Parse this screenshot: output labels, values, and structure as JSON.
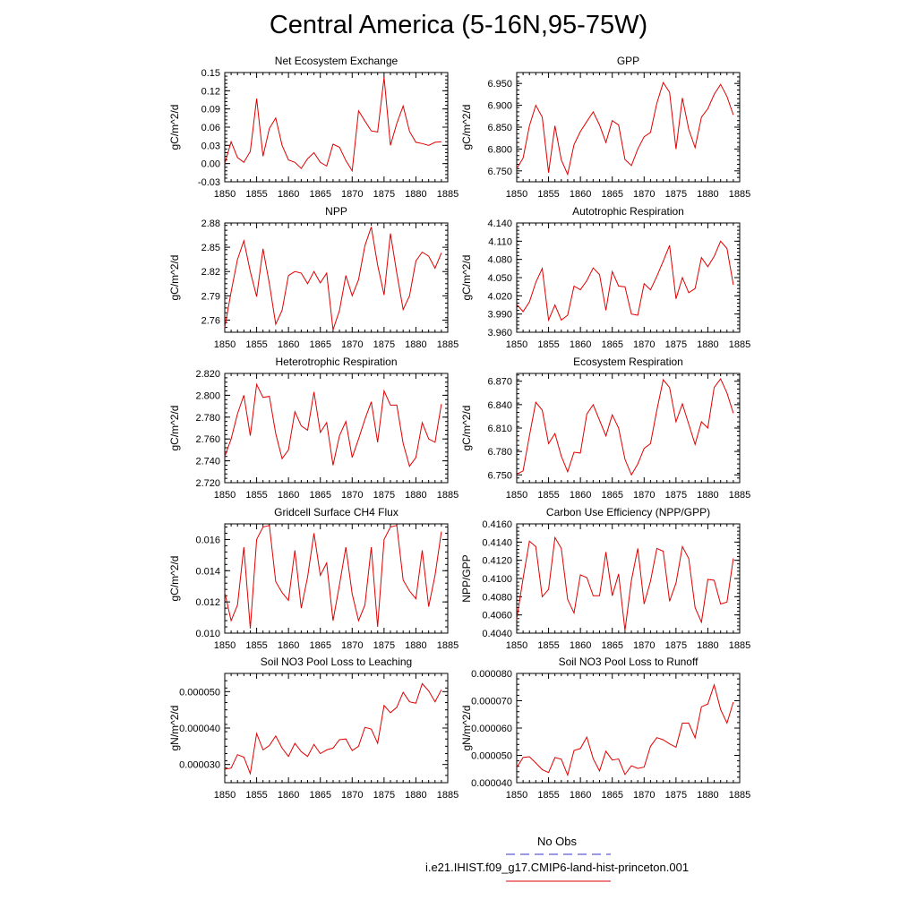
{
  "page": {
    "title": "Central America (5-16N,95-75W)"
  },
  "legend": {
    "obs_label": "No Obs",
    "model_label": "i.e21.IHIST.f09_g17.CMIP6-land-hist-princeton.001",
    "obs_color": "#3333cc",
    "model_color": "#e00000"
  },
  "chart_data": [
    {
      "type": "line",
      "title": "Net Ecosystem Exchange",
      "ylabel": "gC/m^2/d",
      "xlim": [
        1850,
        1885
      ],
      "ylim": [
        -0.03,
        0.15
      ],
      "xticks": [
        1850,
        1855,
        1860,
        1865,
        1870,
        1875,
        1880,
        1885
      ],
      "yticks": [
        "-0.03",
        "0.00",
        "0.03",
        "0.06",
        "0.09",
        "0.12",
        "0.15"
      ],
      "series": [
        {
          "color": "#e00000",
          "x_start": 1850,
          "values": [
            0.0,
            0.036,
            0.01,
            0.002,
            0.02,
            0.107,
            0.012,
            0.058,
            0.075,
            0.03,
            0.006,
            0.002,
            -0.008,
            0.008,
            0.018,
            0.002,
            -0.004,
            0.032,
            0.027,
            0.005,
            -0.012,
            0.087,
            0.07,
            0.054,
            0.052,
            0.142,
            0.03,
            0.066,
            0.095,
            0.053,
            0.035,
            0.033,
            0.03,
            0.035,
            0.036
          ]
        }
      ]
    },
    {
      "type": "line",
      "title": "GPP",
      "ylabel": "gC/m^2/d",
      "xlim": [
        1850,
        1885
      ],
      "ylim": [
        6.725,
        6.975
      ],
      "xticks": [
        1850,
        1855,
        1860,
        1865,
        1870,
        1875,
        1880,
        1885
      ],
      "yticks": [
        "6.750",
        "6.800",
        "6.850",
        "6.900",
        "6.950"
      ],
      "series": [
        {
          "color": "#e00000",
          "x_start": 1850,
          "values": [
            6.755,
            6.779,
            6.853,
            6.9,
            6.873,
            6.746,
            6.853,
            6.775,
            6.742,
            6.81,
            6.84,
            6.863,
            6.885,
            6.855,
            6.815,
            6.865,
            6.855,
            6.776,
            6.762,
            6.8,
            6.828,
            6.838,
            6.905,
            6.952,
            6.93,
            6.8,
            6.917,
            6.845,
            6.803,
            6.873,
            6.892,
            6.925,
            6.948,
            6.92,
            6.878
          ]
        }
      ]
    },
    {
      "type": "line",
      "title": "NPP",
      "ylabel": "gC/m^2/d",
      "xlim": [
        1850,
        1885
      ],
      "ylim": [
        2.745,
        2.88
      ],
      "xticks": [
        1850,
        1855,
        1860,
        1865,
        1870,
        1875,
        1880,
        1885
      ],
      "yticks": [
        "2.76",
        "2.79",
        "2.82",
        "2.85",
        "2.88"
      ],
      "series": [
        {
          "color": "#e00000",
          "x_start": 1850,
          "values": [
            2.751,
            2.795,
            2.835,
            2.858,
            2.82,
            2.789,
            2.848,
            2.805,
            2.755,
            2.772,
            2.815,
            2.82,
            2.818,
            2.805,
            2.82,
            2.806,
            2.818,
            2.748,
            2.772,
            2.815,
            2.79,
            2.81,
            2.852,
            2.875,
            2.828,
            2.791,
            2.867,
            2.818,
            2.773,
            2.79,
            2.833,
            2.844,
            2.839,
            2.824,
            2.843
          ]
        }
      ]
    },
    {
      "type": "line",
      "title": "Autotrophic Respiration",
      "ylabel": "gC/m^2/d",
      "xlim": [
        1850,
        1885
      ],
      "ylim": [
        3.96,
        4.14
      ],
      "xticks": [
        1850,
        1855,
        1860,
        1865,
        1870,
        1875,
        1880,
        1885
      ],
      "yticks": [
        "3.960",
        "3.990",
        "4.020",
        "4.050",
        "4.080",
        "4.110",
        "4.140"
      ],
      "series": [
        {
          "color": "#e00000",
          "x_start": 1850,
          "values": [
            4.006,
            3.994,
            4.01,
            4.042,
            4.065,
            3.98,
            4.005,
            3.98,
            3.988,
            4.036,
            4.03,
            4.045,
            4.066,
            4.055,
            3.996,
            4.06,
            4.036,
            4.035,
            3.99,
            3.988,
            4.04,
            4.03,
            4.052,
            4.077,
            4.103,
            4.015,
            4.05,
            4.025,
            4.032,
            4.083,
            4.068,
            4.085,
            4.11,
            4.098,
            4.038
          ]
        }
      ]
    },
    {
      "type": "line",
      "title": "Heterotrophic Respiration",
      "ylabel": "gC/m^2/d",
      "xlim": [
        1850,
        1885
      ],
      "ylim": [
        2.72,
        2.82
      ],
      "xticks": [
        1850,
        1855,
        1860,
        1865,
        1870,
        1875,
        1880,
        1885
      ],
      "yticks": [
        "2.720",
        "2.740",
        "2.760",
        "2.780",
        "2.800",
        "2.820"
      ],
      "series": [
        {
          "color": "#e00000",
          "x_start": 1850,
          "values": [
            2.744,
            2.76,
            2.783,
            2.8,
            2.763,
            2.81,
            2.798,
            2.799,
            2.765,
            2.742,
            2.75,
            2.785,
            2.772,
            2.768,
            2.803,
            2.766,
            2.775,
            2.736,
            2.763,
            2.776,
            2.743,
            2.76,
            2.778,
            2.794,
            2.757,
            2.804,
            2.791,
            2.791,
            2.756,
            2.735,
            2.743,
            2.775,
            2.76,
            2.757,
            2.792
          ]
        }
      ]
    },
    {
      "type": "line",
      "title": "Ecosystem Respiration",
      "ylabel": "gC/m^2/d",
      "xlim": [
        1850,
        1885
      ],
      "ylim": [
        6.74,
        6.88
      ],
      "xticks": [
        1850,
        1855,
        1860,
        1865,
        1870,
        1875,
        1880,
        1885
      ],
      "yticks": [
        "6.750",
        "6.780",
        "6.810",
        "6.840",
        "6.870"
      ],
      "series": [
        {
          "color": "#e00000",
          "x_start": 1850,
          "values": [
            6.751,
            6.755,
            6.8,
            6.843,
            6.833,
            6.79,
            6.803,
            6.774,
            6.754,
            6.779,
            6.778,
            6.828,
            6.84,
            6.82,
            6.8,
            6.827,
            6.81,
            6.77,
            6.75,
            6.764,
            6.784,
            6.79,
            6.833,
            6.872,
            6.862,
            6.818,
            6.841,
            6.815,
            6.789,
            6.818,
            6.81,
            6.862,
            6.873,
            6.855,
            6.829
          ]
        }
      ]
    },
    {
      "type": "line",
      "title": "Gridcell Surface CH4 Flux",
      "ylabel": "gC/m^2/d",
      "xlim": [
        1850,
        1885
      ],
      "ylim": [
        0.01,
        0.017
      ],
      "xticks": [
        1850,
        1855,
        1860,
        1865,
        1870,
        1875,
        1880,
        1885
      ],
      "yticks": [
        "0.010",
        "0.012",
        "0.014",
        "0.016"
      ],
      "series": [
        {
          "color": "#e00000",
          "x_start": 1850,
          "values": [
            0.0126,
            0.0108,
            0.0118,
            0.0155,
            0.0103,
            0.016,
            0.0168,
            0.0169,
            0.0133,
            0.0126,
            0.0121,
            0.0153,
            0.0116,
            0.0136,
            0.0164,
            0.0137,
            0.0145,
            0.0108,
            0.0131,
            0.0155,
            0.0125,
            0.0108,
            0.0118,
            0.0155,
            0.0104,
            0.016,
            0.0168,
            0.0169,
            0.0134,
            0.0127,
            0.0122,
            0.0153,
            0.0117,
            0.0137,
            0.0165
          ]
        }
      ]
    },
    {
      "type": "line",
      "title": "Carbon Use Efficiency (NPP/GPP)",
      "ylabel": "NPP/GPP",
      "xlim": [
        1850,
        1885
      ],
      "ylim": [
        0.404,
        0.416
      ],
      "xticks": [
        1850,
        1855,
        1860,
        1865,
        1870,
        1875,
        1880,
        1885
      ],
      "yticks": [
        "0.4040",
        "0.4060",
        "0.4080",
        "0.4100",
        "0.4120",
        "0.4140",
        "0.4160"
      ],
      "series": [
        {
          "color": "#e00000",
          "x_start": 1850,
          "values": [
            0.4055,
            0.41,
            0.4141,
            0.4135,
            0.408,
            0.4088,
            0.4145,
            0.4133,
            0.4077,
            0.4062,
            0.4104,
            0.4101,
            0.4081,
            0.4081,
            0.4129,
            0.4081,
            0.4105,
            0.4043,
            0.4098,
            0.4133,
            0.4072,
            0.4097,
            0.4133,
            0.413,
            0.4075,
            0.4095,
            0.4135,
            0.4122,
            0.4068,
            0.4052,
            0.4099,
            0.4098,
            0.4072,
            0.4074,
            0.4122
          ]
        }
      ]
    },
    {
      "type": "line",
      "title": "Soil NO3 Pool Loss to Leaching",
      "ylabel": "gN/m^2/d",
      "xlim": [
        1850,
        1885
      ],
      "ylim": [
        2.5e-05,
        5.5e-05
      ],
      "xticks": [
        1850,
        1855,
        1860,
        1865,
        1870,
        1875,
        1880,
        1885
      ],
      "yticks": [
        "0.000030",
        "0.000040",
        "0.000050"
      ],
      "series": [
        {
          "color": "#e00000",
          "x_start": 1850,
          "values": [
            2.87e-05,
            2.9e-05,
            3.27e-05,
            3.2e-05,
            2.75e-05,
            3.85e-05,
            3.4e-05,
            3.52e-05,
            3.78e-05,
            3.45e-05,
            3.22e-05,
            3.58e-05,
            3.35e-05,
            3.22e-05,
            3.55e-05,
            3.3e-05,
            3.4e-05,
            3.45e-05,
            3.68e-05,
            3.7e-05,
            3.38e-05,
            3.5e-05,
            4.02e-05,
            3.97e-05,
            3.58e-05,
            4.62e-05,
            4.42e-05,
            4.57e-05,
            4.98e-05,
            4.72e-05,
            4.68e-05,
            5.22e-05,
            5.02e-05,
            4.72e-05,
            5.05e-05
          ]
        }
      ]
    },
    {
      "type": "line",
      "title": "Soil NO3 Pool Loss to Runoff",
      "ylabel": "gN/m^2/d",
      "xlim": [
        1850,
        1885
      ],
      "ylim": [
        4e-05,
        8e-05
      ],
      "xticks": [
        1850,
        1855,
        1860,
        1865,
        1870,
        1875,
        1880,
        1885
      ],
      "yticks": [
        "0.000040",
        "0.000050",
        "0.000060",
        "0.000070",
        "0.000080"
      ],
      "series": [
        {
          "color": "#e00000",
          "x_start": 1850,
          "values": [
            4.55e-05,
            4.92e-05,
            4.95e-05,
            4.72e-05,
            4.48e-05,
            4.37e-05,
            4.92e-05,
            4.86e-05,
            4.28e-05,
            5.18e-05,
            5.25e-05,
            5.67e-05,
            4.88e-05,
            4.43e-05,
            5.15e-05,
            4.83e-05,
            4.87e-05,
            4.3e-05,
            4.62e-05,
            4.52e-05,
            4.57e-05,
            5.33e-05,
            5.65e-05,
            5.57e-05,
            5.42e-05,
            5.3e-05,
            6.18e-05,
            6.18e-05,
            5.64e-05,
            6.78e-05,
            6.88e-05,
            7.58e-05,
            6.68e-05,
            6.18e-05,
            6.95e-05
          ]
        }
      ]
    }
  ]
}
